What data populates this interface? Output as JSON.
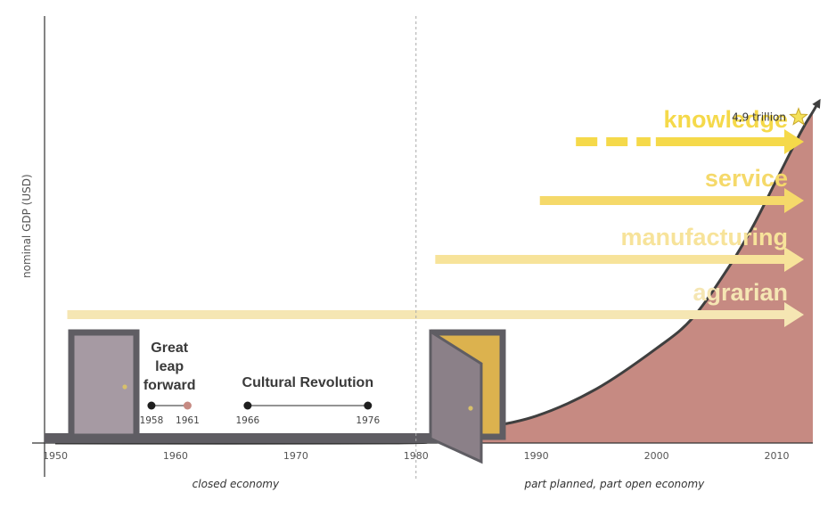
{
  "chart_data": {
    "type": "area",
    "title": "",
    "ylabel": "nominal GDP (USD)",
    "xlabel": "",
    "xlim": [
      1950,
      2013
    ],
    "x_ticks": [
      1950,
      1960,
      1970,
      1980,
      1990,
      2000,
      2010
    ],
    "ylim": [
      0,
      5.5
    ],
    "y_unit": "trillion USD",
    "grid": false,
    "legend": "none",
    "series": [
      {
        "x": [
          1950,
          1978,
          1981,
          1985,
          1990,
          1995,
          2000,
          2003,
          2006,
          2008,
          2010,
          2012,
          2013
        ],
        "values": [
          0.0,
          0.0,
          0.05,
          0.2,
          0.4,
          0.8,
          1.4,
          1.85,
          2.6,
          3.2,
          3.9,
          4.6,
          4.9
        ],
        "color": "#c68a82"
      }
    ],
    "peak_annotation": {
      "text": "4,9 trillion",
      "x": 2013,
      "y": 4.9
    },
    "divider": {
      "x": 1980
    },
    "periods": [
      {
        "label": "closed economy",
        "from": 1950,
        "to": 1980
      },
      {
        "label": "part planned, part open economy",
        "from": 1980,
        "to": 2013
      }
    ],
    "sectors": [
      {
        "label": "agrarian",
        "start": 1951,
        "color": "#f5e6b3"
      },
      {
        "label": "manufacturing",
        "start": 1981.6,
        "color": "#f7e39a"
      },
      {
        "label": "service",
        "start": 1990.3,
        "color": "#f5d96a"
      },
      {
        "label": "knowledge",
        "start": 1993.3,
        "dashed_until": 1999.5,
        "color": "#f5d94a"
      }
    ],
    "events": [
      {
        "label": "Great leap forward",
        "start": 1958,
        "end": 1961,
        "start_label": "1958",
        "end_label": "1961"
      },
      {
        "label": "Cultural Revolution",
        "start": 1966,
        "end": 1976,
        "start_label": "1966",
        "end_label": "1976"
      }
    ]
  }
}
